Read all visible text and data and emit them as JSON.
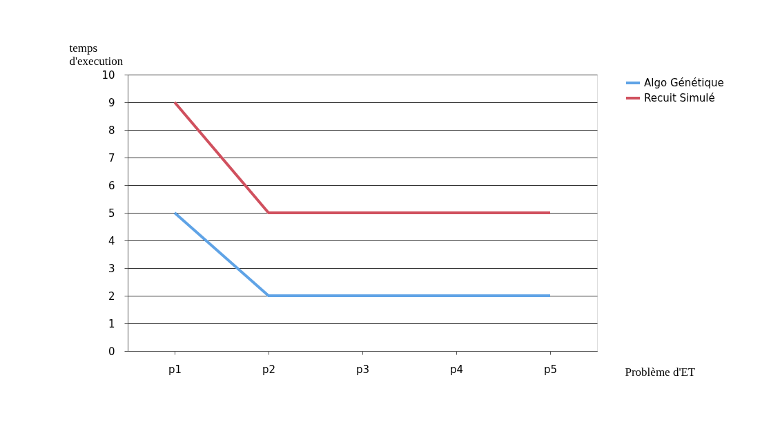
{
  "chart_data": {
    "type": "line",
    "xlabel": "Problème d'ET",
    "ylabel": "temps d'execution",
    "categories": [
      "p1",
      "p2",
      "p3",
      "p4",
      "p5"
    ],
    "series": [
      {
        "name": "Algo Génétique",
        "color": "#5fa3e6",
        "values": [
          5,
          2,
          2,
          2,
          2
        ]
      },
      {
        "name": "Recuit Simulé",
        "color": "#d0505e",
        "values": [
          9,
          5,
          5,
          5,
          5
        ]
      }
    ],
    "ylim": [
      0,
      10
    ],
    "yticks": [
      0,
      1,
      2,
      3,
      4,
      5,
      6,
      7,
      8,
      9,
      10
    ],
    "grid": "y",
    "legend": "right",
    "marker": "none",
    "line_style": "solid"
  }
}
